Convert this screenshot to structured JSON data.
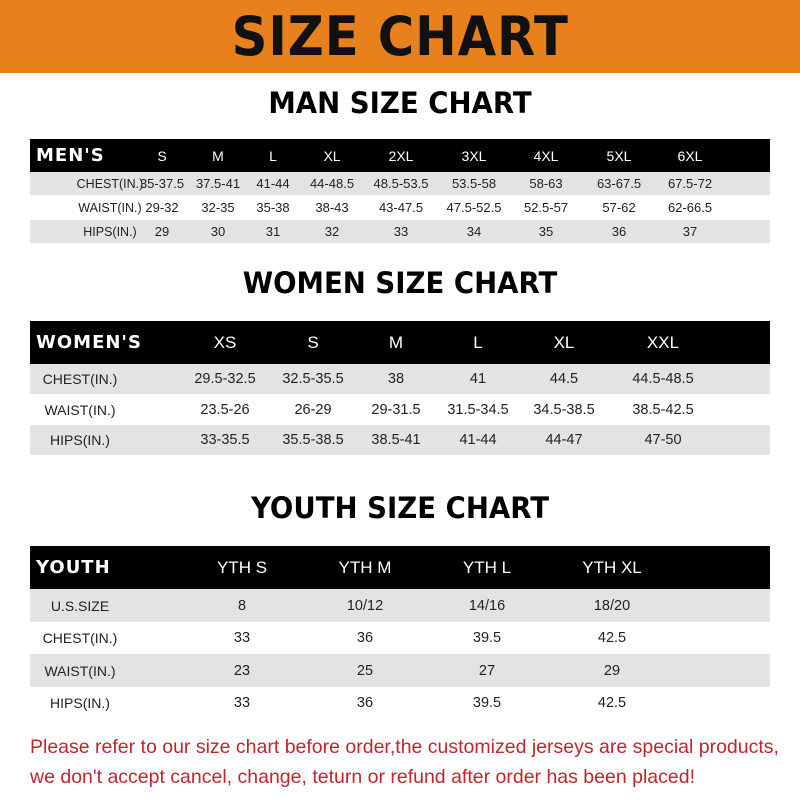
{
  "banner": {
    "title": "SIZE CHART",
    "color": "#E8801C"
  },
  "men": {
    "title": "MAN SIZE CHART",
    "header": [
      "MEN'S",
      "S",
      "M",
      "L",
      "XL",
      "2XL",
      "3XL",
      "4XL",
      "5XL",
      "6XL"
    ],
    "rows": [
      [
        "CHEST(IN.)",
        "35-37.5",
        "37.5-41",
        "41-44",
        "44-48.5",
        "48.5-53.5",
        "53.5-58",
        "58-63",
        "63-67.5",
        "67.5-72"
      ],
      [
        "WAIST(IN.)",
        "29-32",
        "32-35",
        "35-38",
        "38-43",
        "43-47.5",
        "47.5-52.5",
        "52.5-57",
        "57-62",
        "62-66.5"
      ],
      [
        "HIPS(IN.)",
        "29",
        "30",
        "31",
        "32",
        "33",
        "34",
        "35",
        "36",
        "37"
      ]
    ]
  },
  "women": {
    "title": "WOMEN SIZE CHART",
    "header": [
      "WOMEN'S",
      "XS",
      "S",
      "M",
      "L",
      "XL",
      "XXL"
    ],
    "rows": [
      [
        "CHEST(IN.)",
        "29.5-32.5",
        "32.5-35.5",
        "38",
        "41",
        "44.5",
        "44.5-48.5"
      ],
      [
        "WAIST(IN.)",
        "23.5-26",
        "26-29",
        "29-31.5",
        "31.5-34.5",
        "34.5-38.5",
        "38.5-42.5"
      ],
      [
        "HIPS(IN.)",
        "33-35.5",
        "35.5-38.5",
        "38.5-41",
        "41-44",
        "44-47",
        "47-50"
      ]
    ]
  },
  "youth": {
    "title": "YOUTH SIZE CHART",
    "header": [
      "YOUTH",
      "YTH S",
      "YTH M",
      "YTH L",
      "YTH XL"
    ],
    "rows": [
      [
        "U.S.SIZE",
        "8",
        "10/12",
        "14/16",
        "18/20"
      ],
      [
        "CHEST(IN.)",
        "33",
        "36",
        "39.5",
        "42.5"
      ],
      [
        "WAIST(IN.)",
        "23",
        "25",
        "27",
        "29"
      ],
      [
        "HIPS(IN.)",
        "33",
        "36",
        "39.5",
        "42.5"
      ]
    ]
  },
  "note": {
    "line1": "Please refer to our size chart before order,the customized jerseys are special products,",
    "line2": "we don't accept cancel, change, teturn or refund after order has been placed!",
    "color": "#C0262B"
  }
}
